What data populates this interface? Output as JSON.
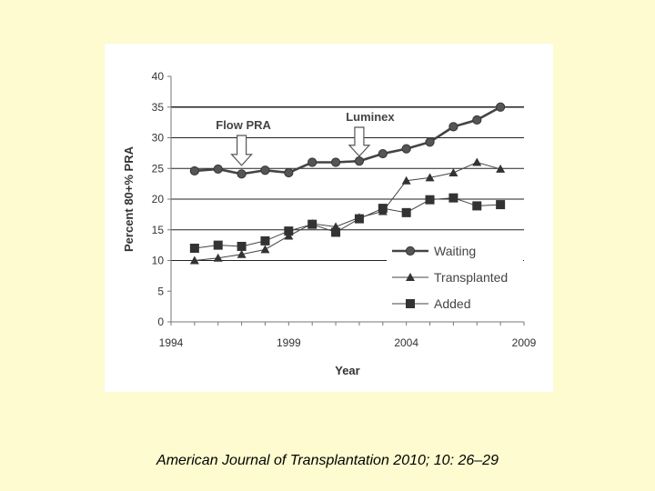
{
  "chart_data": {
    "type": "line",
    "title": "",
    "xlabel": "Year",
    "ylabel": "Percent 80+% PRA",
    "xlim": [
      1994,
      2009
    ],
    "ylim": [
      0,
      40
    ],
    "x_ticks": [
      1994,
      1999,
      2004,
      2009
    ],
    "y_ticks": [
      0,
      5,
      10,
      15,
      20,
      25,
      30,
      35,
      40
    ],
    "gridlines_y": [
      10,
      15,
      20,
      25,
      30,
      35
    ],
    "legend_position": "bottom-right",
    "x": [
      1995,
      1996,
      1997,
      1998,
      1999,
      2000,
      2001,
      2002,
      2003,
      2004,
      2005,
      2006,
      2007,
      2008
    ],
    "series": [
      {
        "name": "Waiting",
        "marker": "circle",
        "values": [
          24.6,
          24.9,
          24.1,
          24.7,
          24.3,
          26.0,
          26.0,
          26.2,
          27.4,
          28.2,
          29.3,
          31.8,
          32.9,
          35.0
        ]
      },
      {
        "name": "Transplanted",
        "marker": "triangle",
        "values": [
          10.0,
          10.4,
          11.0,
          11.8,
          14.0,
          16.0,
          15.5,
          17.0,
          18.0,
          23.0,
          23.5,
          24.3,
          26.0,
          24.9
        ]
      },
      {
        "name": "Added",
        "marker": "square",
        "values": [
          12.0,
          12.5,
          12.3,
          13.2,
          14.8,
          15.9,
          14.6,
          16.8,
          18.5,
          17.8,
          19.9,
          20.2,
          18.9,
          19.1
        ]
      }
    ],
    "annotations": [
      {
        "text": "Flow PRA",
        "arrow_x": 1997.0,
        "arrow_to_y": 25.5
      },
      {
        "text": "Luminex",
        "arrow_x": 2002.0,
        "arrow_to_y": 27.0
      }
    ]
  },
  "citation": "American Journal of Transplantation 2010; 10: 26–29",
  "colors": {
    "background": "#fdfbcf",
    "plot_background": "#ffffff",
    "series_stroke": "#444444"
  }
}
